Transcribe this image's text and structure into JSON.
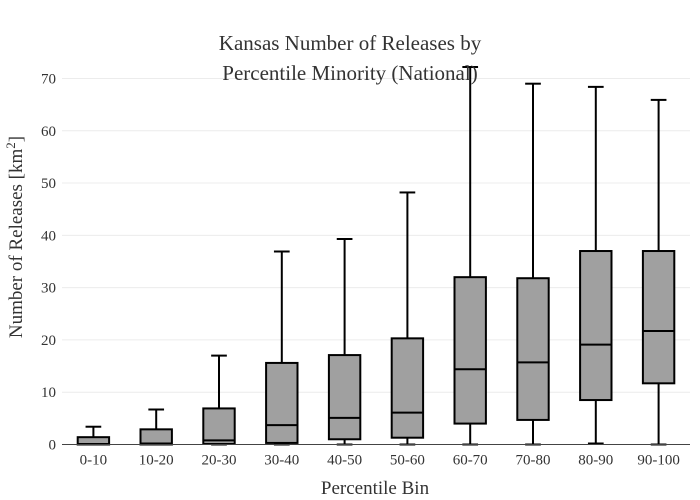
{
  "chart_data": {
    "type": "box",
    "title_lines": [
      "Kansas Number of Releases by",
      "Percentile Minority (National)"
    ],
    "xlabel": "Percentile Bin",
    "ylabel_main": "Number of Releases  [km",
    "ylabel_sup": "2",
    "ylabel_end": "]",
    "ylim": [
      0,
      72
    ],
    "yticks": [
      0,
      10,
      20,
      30,
      40,
      50,
      60,
      70
    ],
    "grid": true,
    "colors": {
      "box_fill": "#a0a0a0",
      "line": "#000000",
      "grid": "#ececec"
    },
    "categories": [
      "0-10",
      "10-20",
      "20-30",
      "30-40",
      "40-50",
      "50-60",
      "60-70",
      "70-80",
      "80-90",
      "90-100"
    ],
    "boxes": [
      {
        "min": 0,
        "q1": 0,
        "median": 0.1,
        "q3": 1.4,
        "max": 3.4
      },
      {
        "min": 0,
        "q1": 0,
        "median": 0.2,
        "q3": 2.9,
        "max": 6.7
      },
      {
        "min": 0,
        "q1": 0.1,
        "median": 0.8,
        "q3": 6.9,
        "max": 17
      },
      {
        "min": 0,
        "q1": 0.3,
        "median": 3.7,
        "q3": 15.6,
        "max": 36.9
      },
      {
        "min": 0,
        "q1": 1.0,
        "median": 5.1,
        "q3": 17.1,
        "max": 39.3
      },
      {
        "min": 0,
        "q1": 1.3,
        "median": 6.1,
        "q3": 20.3,
        "max": 48.2
      },
      {
        "min": 0,
        "q1": 4.0,
        "median": 14.4,
        "q3": 32.0,
        "max": 72.2
      },
      {
        "min": 0,
        "q1": 4.7,
        "median": 15.7,
        "q3": 31.8,
        "max": 69.0
      },
      {
        "min": 0.2,
        "q1": 8.5,
        "median": 19.1,
        "q3": 37.0,
        "max": 68.4
      },
      {
        "min": 0,
        "q1": 11.7,
        "median": 21.7,
        "q3": 37.0,
        "max": 65.9
      }
    ]
  }
}
